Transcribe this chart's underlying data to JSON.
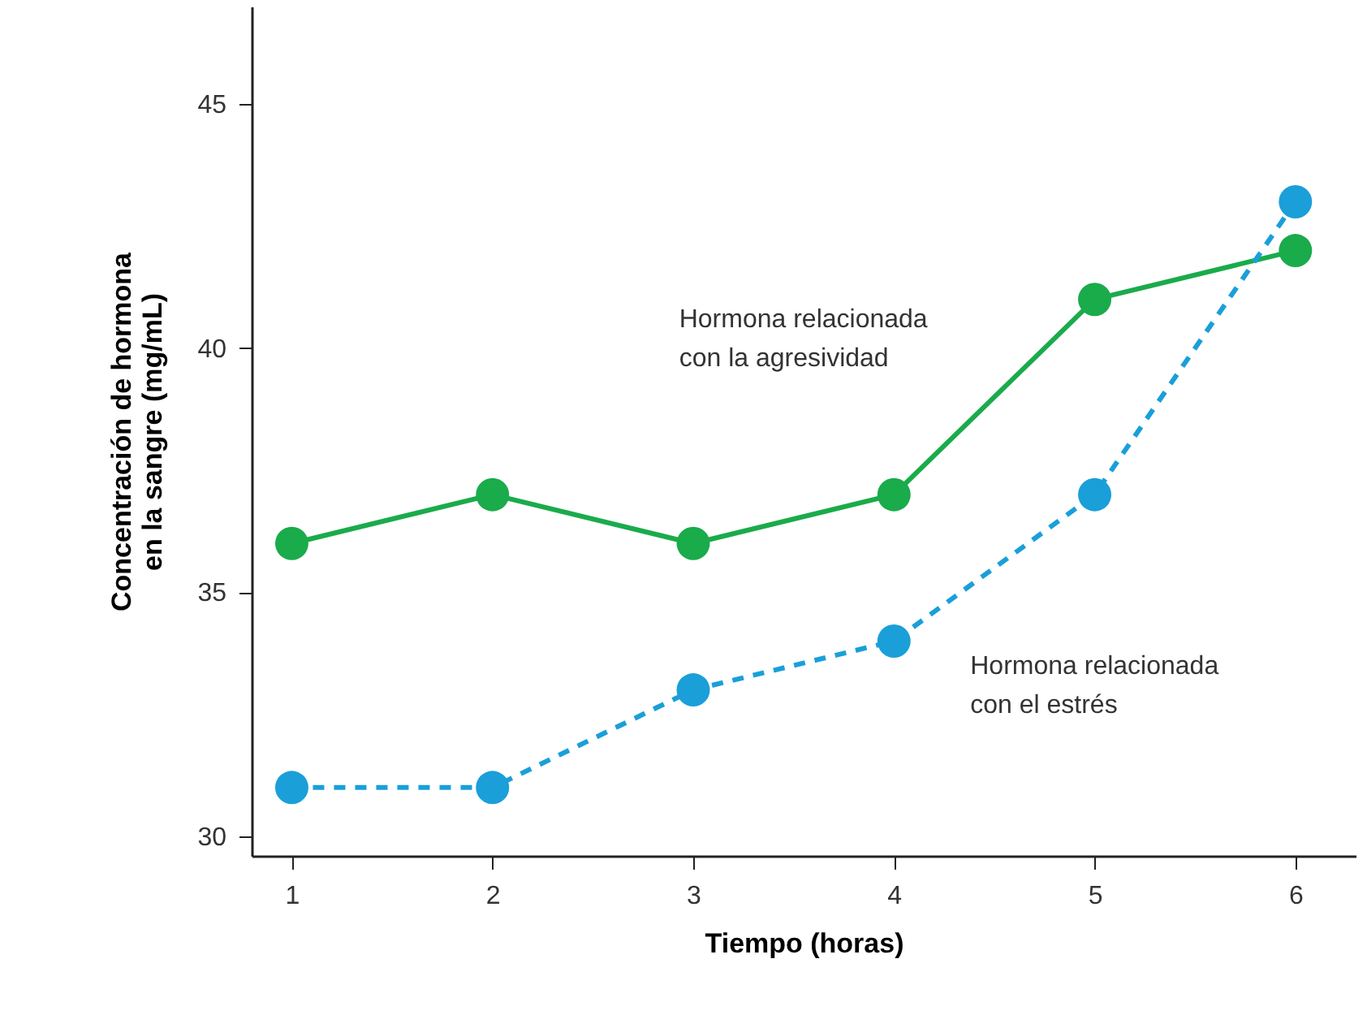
{
  "chart_data": {
    "type": "line",
    "xlabel": "Tiempo (horas)",
    "ylabel": "Concentración de hormona en la sangre (mg/mL)",
    "x": [
      1,
      2,
      3,
      4,
      5,
      6
    ],
    "xlim": [
      0.8,
      6.3
    ],
    "xticks": [
      1,
      2,
      3,
      4,
      5,
      6
    ],
    "ylim": [
      29.6,
      47
    ],
    "yticks": [
      30,
      35,
      40,
      45
    ],
    "grid": false,
    "marker": "circle",
    "series": [
      {
        "name": "Hormona relacionada con la agresividad",
        "color": "#1aab4b",
        "line_style": "solid",
        "values": [
          36,
          37,
          36,
          37,
          41,
          42
        ]
      },
      {
        "name": "Hormona relacionada con el estrés",
        "color": "#1a9fd9",
        "line_style": "dashed",
        "values": [
          31,
          31,
          33,
          34,
          37,
          43
        ]
      }
    ]
  }
}
